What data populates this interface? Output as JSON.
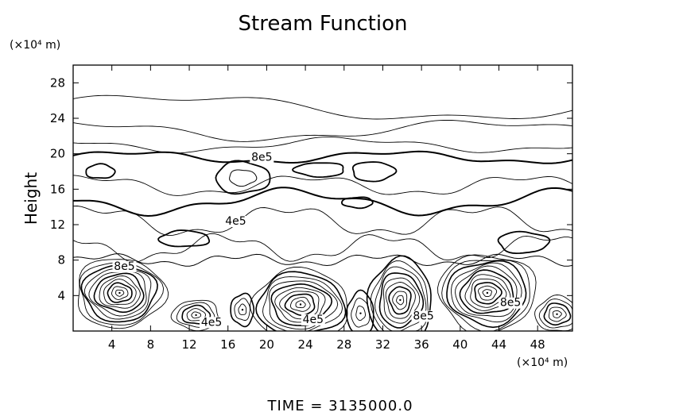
{
  "chart_data": {
    "type": "contour",
    "title": "Stream Function",
    "ylabel": "Height",
    "x_unit_label": "(×10⁴ m)",
    "y_unit_label": "(×10⁴ m)",
    "footer": "TIME = 3135000.0",
    "xlim": [
      0,
      51.6
    ],
    "ylim": [
      0,
      30
    ],
    "x_ticks": [
      4,
      8,
      12,
      16,
      20,
      24,
      28,
      32,
      36,
      40,
      44,
      48
    ],
    "y_ticks": [
      4,
      8,
      12,
      16,
      20,
      24,
      28
    ],
    "contour_labels": [
      {
        "text": "8e5",
        "x": 19.5,
        "y": 19.2
      },
      {
        "text": "4e5",
        "x": 16.8,
        "y": 12.0
      },
      {
        "text": "8e5",
        "x": 5.3,
        "y": 6.9
      },
      {
        "text": "4e5",
        "x": 14.3,
        "y": 0.6
      },
      {
        "text": "4e5",
        "x": 24.8,
        "y": 0.9
      },
      {
        "text": "8e5",
        "x": 36.2,
        "y": 1.3
      },
      {
        "text": "8e5",
        "x": 45.2,
        "y": 2.8
      }
    ],
    "eddies": [
      {
        "x": 4.8,
        "y": 4.3,
        "rx": 4.6,
        "ry": 3.9,
        "n": 11
      },
      {
        "x": 12.7,
        "y": 1.8,
        "rx": 2.4,
        "ry": 1.7,
        "n": 5
      },
      {
        "x": 23.5,
        "y": 3.0,
        "rx": 5.0,
        "ry": 3.9,
        "n": 10
      },
      {
        "x": 33.8,
        "y": 3.5,
        "rx": 3.3,
        "ry": 4.6,
        "n": 9
      },
      {
        "x": 42.8,
        "y": 4.3,
        "rx": 5.0,
        "ry": 4.4,
        "n": 11
      },
      {
        "x": 50.0,
        "y": 1.9,
        "rx": 2.2,
        "ry": 2.0,
        "n": 5
      },
      {
        "x": 29.7,
        "y": 2.0,
        "rx": 1.4,
        "ry": 2.4,
        "n": 3
      },
      {
        "x": 17.5,
        "y": 2.4,
        "rx": 1.2,
        "ry": 1.8,
        "n": 3
      }
    ],
    "cells": [
      {
        "x": 17.5,
        "y": 17.3,
        "rx": 2.8,
        "ry": 1.8,
        "n": 2
      },
      {
        "x": 2.8,
        "y": 18.0,
        "rx": 1.5,
        "ry": 0.8,
        "n": 1
      },
      {
        "x": 25.5,
        "y": 18.2,
        "rx": 2.6,
        "ry": 0.8,
        "n": 1
      },
      {
        "x": 31.0,
        "y": 18.0,
        "rx": 2.2,
        "ry": 1.1,
        "n": 1
      },
      {
        "x": 11.5,
        "y": 10.4,
        "rx": 2.6,
        "ry": 0.9,
        "n": 1
      },
      {
        "x": 29.4,
        "y": 14.5,
        "rx": 1.6,
        "ry": 0.6,
        "n": 1
      },
      {
        "x": 46.5,
        "y": 10.0,
        "rx": 2.6,
        "ry": 1.2,
        "n": 1
      }
    ],
    "level_lines": [
      {
        "base": 25.2,
        "amp": 1.3,
        "freq": 0.9,
        "phase": 0.5,
        "bold": false
      },
      {
        "base": 22.6,
        "amp": 1.0,
        "freq": 1.2,
        "phase": 1.7,
        "bold": false
      },
      {
        "base": 21.0,
        "amp": 0.7,
        "freq": 1.6,
        "phase": 2.4,
        "bold": false
      },
      {
        "base": 19.6,
        "amp": 0.6,
        "freq": 1.9,
        "phase": 0.2,
        "bold": true
      },
      {
        "base": 16.4,
        "amp": 1.0,
        "freq": 2.3,
        "phase": 1.1,
        "bold": false
      },
      {
        "base": 14.6,
        "amp": 1.2,
        "freq": 1.8,
        "phase": 2.9,
        "bold": true
      },
      {
        "base": 12.4,
        "amp": 1.5,
        "freq": 2.6,
        "phase": 0.9,
        "bold": false
      },
      {
        "base": 9.4,
        "amp": 1.3,
        "freq": 3.1,
        "phase": 2.0,
        "bold": false
      }
    ]
  }
}
